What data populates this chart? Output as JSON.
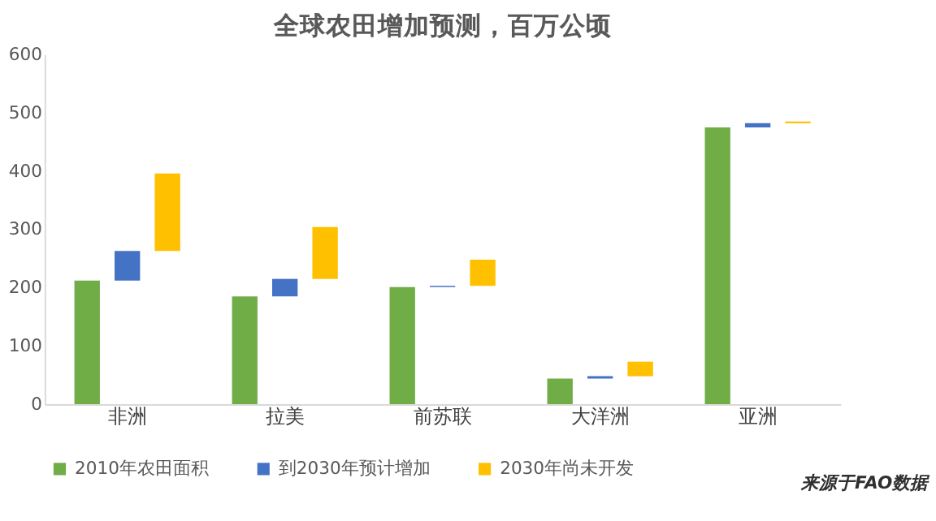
{
  "chart_data": {
    "type": "bar",
    "title": "全球农田增加预测，百万公顷",
    "categories": [
      "非洲",
      "拉美",
      "前苏联",
      "大洋洲",
      "亚洲"
    ],
    "series": [
      {
        "name": "2010年农田面积",
        "color": "#70ad47",
        "values": [
          212,
          185,
          201,
          44,
          475
        ]
      },
      {
        "name": "到2030年预计增加",
        "color": "#4472c4",
        "values": [
          51,
          30,
          2,
          4,
          7
        ],
        "base": [
          212,
          185,
          201,
          44,
          475
        ]
      },
      {
        "name": "2030年尚未开发",
        "color": "#ffc000",
        "values": [
          133,
          89,
          45,
          25,
          3
        ],
        "base": [
          263,
          215,
          203,
          48,
          482
        ]
      }
    ],
    "ylim": [
      0,
      600
    ],
    "yticks": [
      0,
      100,
      200,
      300,
      400,
      500,
      600
    ],
    "grid": false,
    "legend": "bottom",
    "annotations": [
      "来源于FAO数据"
    ]
  }
}
